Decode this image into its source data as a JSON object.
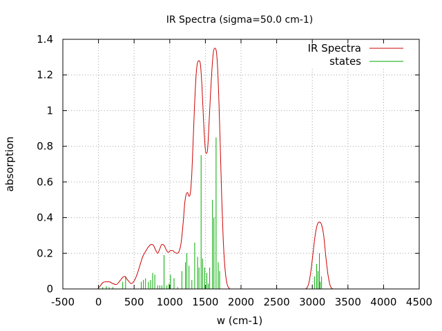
{
  "chart_data": {
    "type": "line",
    "title": "IR Spectra (sigma=50.0 cm-1)",
    "xlabel": "w (cm-1)",
    "ylabel": "absorption",
    "xlim": [
      -500,
      4500
    ],
    "ylim": [
      0,
      1.4
    ],
    "xticks": [
      "-500",
      "0",
      "500",
      "1000",
      "1500",
      "2000",
      "2500",
      "3000",
      "3500",
      "4000",
      "4500"
    ],
    "yticks": [
      "0",
      "0.2",
      "0.4",
      "0.6",
      "0.8",
      "1",
      "1.2",
      "1.4"
    ],
    "grid": true,
    "legend_position": "top-right",
    "colors": {
      "spectrum": "#cc0000",
      "states": "#00aa00"
    },
    "series": [
      {
        "name": "IR Spectra",
        "style": "line",
        "x": [
          -10,
          0,
          30,
          60,
          100,
          150,
          200,
          250,
          300,
          340,
          370,
          400,
          430,
          460,
          500,
          540,
          580,
          620,
          660,
          700,
          740,
          770,
          800,
          830,
          860,
          890,
          920,
          950,
          980,
          1010,
          1040,
          1070,
          1100,
          1130,
          1160,
          1190,
          1210,
          1230,
          1250,
          1270,
          1290,
          1310,
          1330,
          1350,
          1370,
          1390,
          1410,
          1430,
          1450,
          1470,
          1490,
          1510,
          1530,
          1550,
          1570,
          1590,
          1610,
          1630,
          1650,
          1670,
          1690,
          1710,
          1730,
          1750,
          1770,
          1790,
          1810,
          1830,
          1850,
          2000,
          2500,
          2900,
          2950,
          2980,
          3010,
          3040,
          3070,
          3100,
          3130,
          3160,
          3190,
          3220,
          3250,
          3300,
          3500,
          4200
        ],
        "values": [
          0,
          0.005,
          0.02,
          0.035,
          0.04,
          0.04,
          0.03,
          0.025,
          0.045,
          0.065,
          0.07,
          0.055,
          0.04,
          0.03,
          0.045,
          0.08,
          0.13,
          0.18,
          0.21,
          0.235,
          0.25,
          0.245,
          0.22,
          0.2,
          0.225,
          0.25,
          0.245,
          0.22,
          0.205,
          0.215,
          0.215,
          0.205,
          0.2,
          0.21,
          0.26,
          0.38,
          0.48,
          0.53,
          0.54,
          0.52,
          0.54,
          0.65,
          0.85,
          1.05,
          1.2,
          1.27,
          1.28,
          1.26,
          1.15,
          0.98,
          0.83,
          0.76,
          0.78,
          0.92,
          1.08,
          1.22,
          1.32,
          1.35,
          1.34,
          1.25,
          1.05,
          0.78,
          0.5,
          0.28,
          0.14,
          0.06,
          0.02,
          0.005,
          0,
          0,
          0,
          0,
          0.03,
          0.1,
          0.2,
          0.3,
          0.36,
          0.375,
          0.36,
          0.3,
          0.18,
          0.08,
          0.02,
          0,
          0,
          0
        ]
      },
      {
        "name": "states",
        "style": "impulses",
        "x": [
          60,
          110,
          150,
          200,
          340,
          380,
          600,
          630,
          660,
          700,
          730,
          760,
          790,
          830,
          860,
          890,
          920,
          960,
          990,
          1010,
          1060,
          1110,
          1170,
          1220,
          1240,
          1270,
          1310,
          1350,
          1390,
          1410,
          1440,
          1460,
          1490,
          1520,
          1540,
          1560,
          1600,
          1620,
          1650,
          1680,
          1700,
          3030,
          3060,
          3080,
          3100,
          3110,
          3130
        ],
        "values": [
          0.01,
          0.015,
          0.01,
          0.01,
          0.04,
          0.07,
          0.04,
          0.05,
          0.06,
          0.04,
          0.05,
          0.09,
          0.08,
          0.02,
          0.02,
          0.02,
          0.19,
          0.02,
          0.03,
          0.08,
          0.06,
          0.01,
          0.1,
          0.15,
          0.2,
          0.13,
          0.05,
          0.26,
          0.18,
          0.12,
          0.75,
          0.17,
          0.12,
          0.09,
          0.03,
          0.12,
          0.5,
          0.4,
          0.85,
          0.15,
          0.1,
          0.07,
          0.14,
          0.1,
          0.2,
          0.04,
          0.07
        ]
      }
    ]
  }
}
